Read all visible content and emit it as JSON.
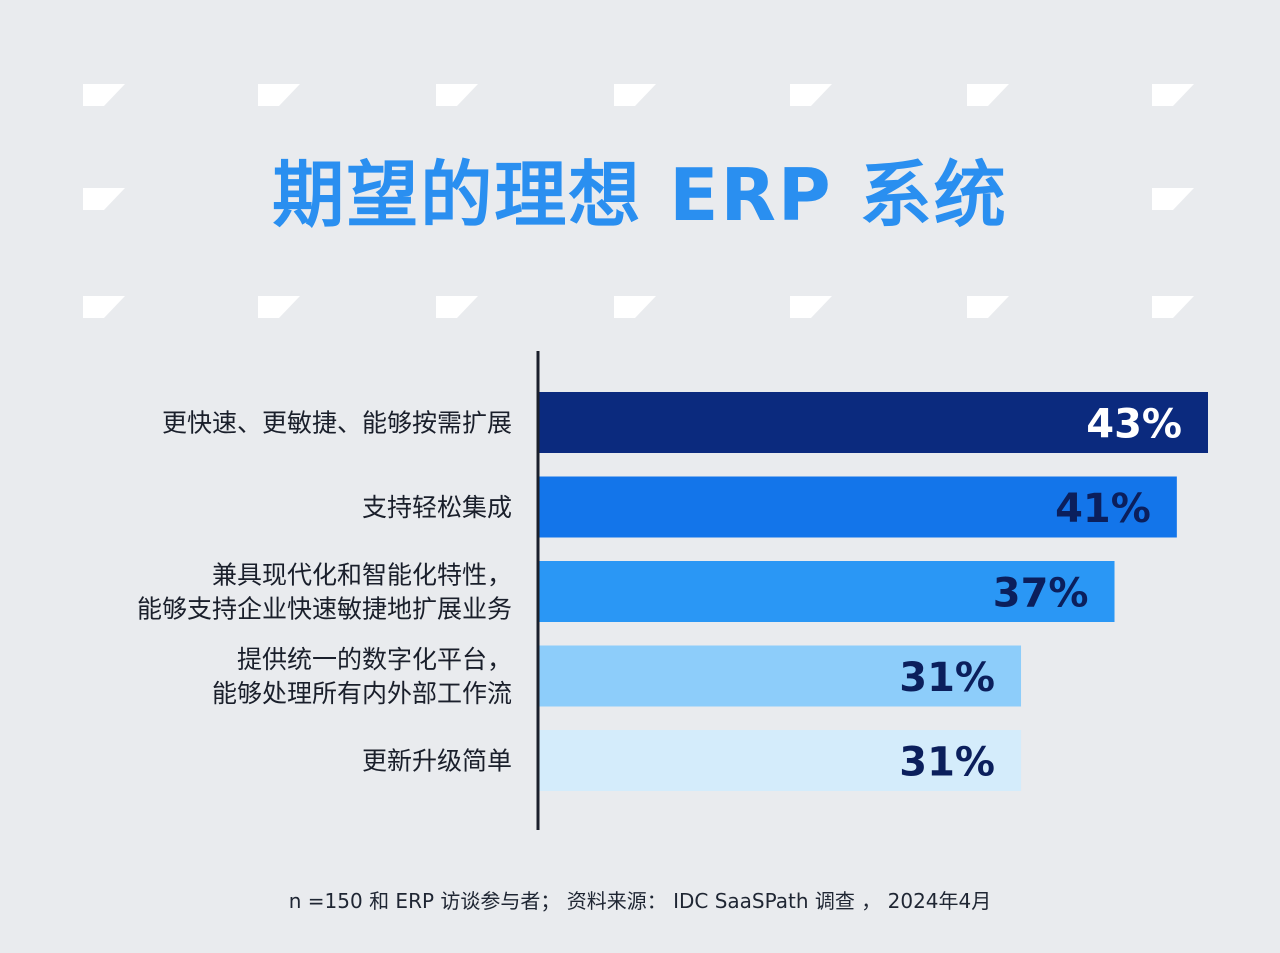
{
  "title": "期望的理想 ERP 系统",
  "footnote": "n =150 和 ERP 访谈参与者； 资料来源： IDC SaaSPath 调查 ， 2024年4月",
  "colors": {
    "background": "#e9ebee",
    "title": "#2a8ff0",
    "axis": "#1a1f2b",
    "label_dark": "#0b1f5c",
    "label_light": "#ffffff",
    "bars": [
      "#0b2a7e",
      "#1375ea",
      "#2a97f5",
      "#8dcdfa",
      "#d4ecfb"
    ]
  },
  "chart_data": {
    "type": "bar",
    "orientation": "horizontal",
    "categories": [
      [
        "更快速、更敏捷、能够按需扩展"
      ],
      [
        "支持轻松集成"
      ],
      [
        "兼具现代化和智能化特性，",
        "能够支持企业快速敏捷地扩展业务"
      ],
      [
        "提供统一的数字化平台，",
        "能够处理所有内外部工作流"
      ],
      [
        "更新升级简单"
      ]
    ],
    "values": [
      43,
      41,
      37,
      31,
      31
    ],
    "data_labels": [
      "43%",
      "41%",
      "37%",
      "31%",
      "31%"
    ],
    "unit": "%",
    "xlim": [
      0,
      43
    ],
    "grid": false,
    "legend": "none"
  }
}
